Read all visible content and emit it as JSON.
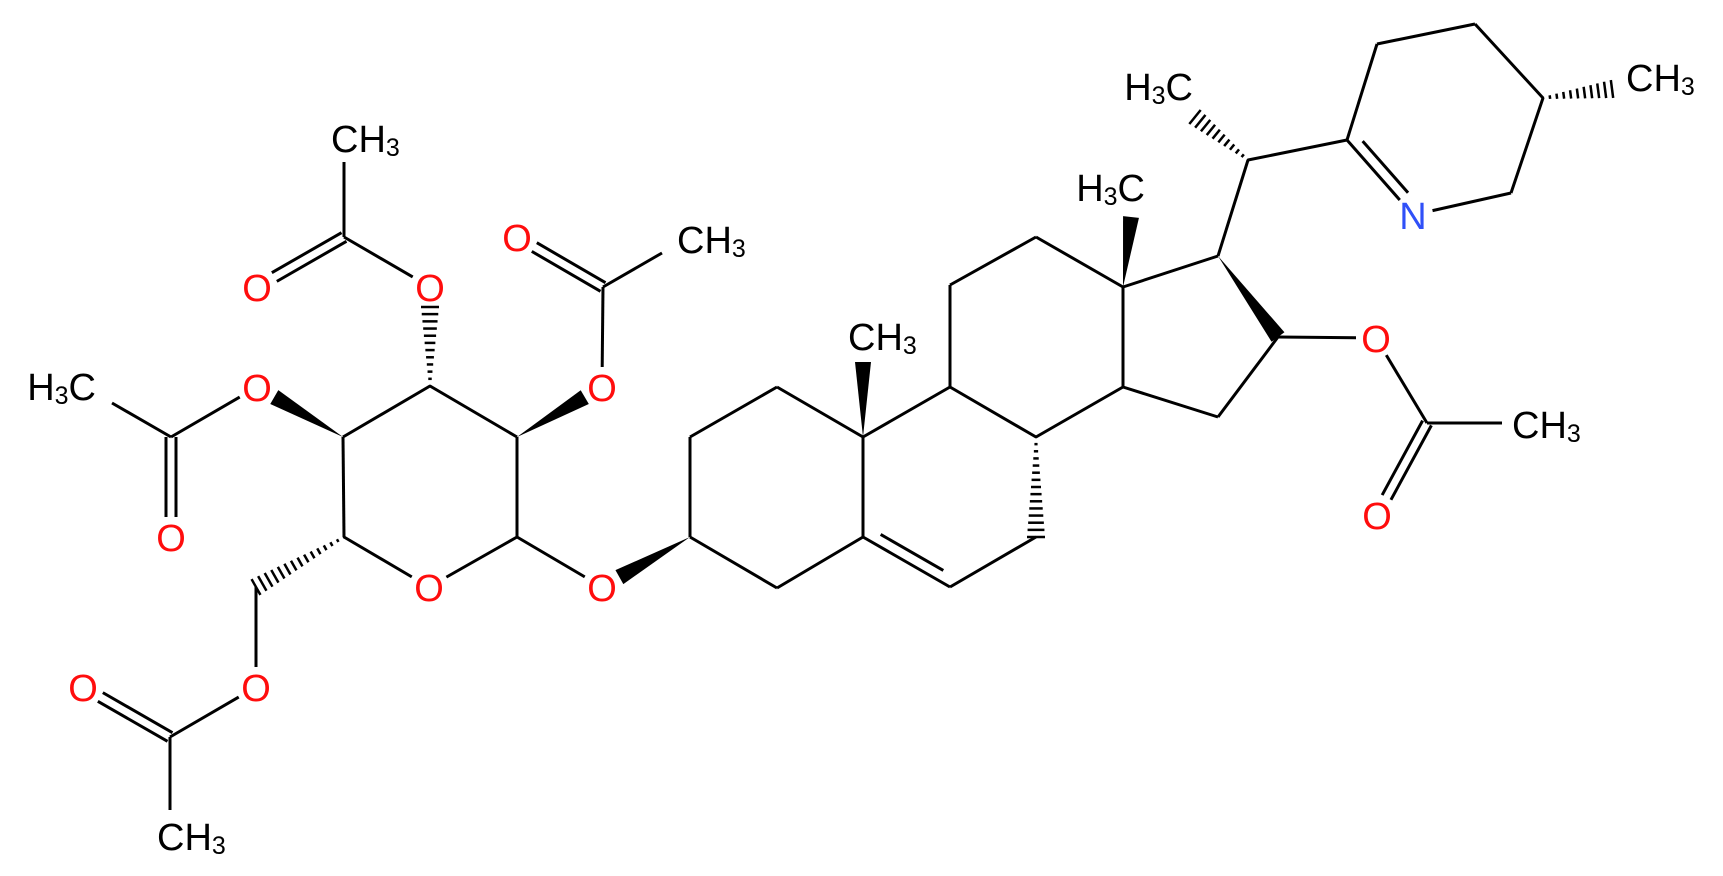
{
  "molecule": {
    "labels": {
      "oxygen": "O",
      "nitrogen": "N",
      "methyl": "CH3",
      "methyl_left": "H3C"
    },
    "colors": {
      "carbon": "#000000",
      "oxygen": "#ff0d0d",
      "nitrogen": "#3050f8",
      "background": "#ffffff"
    }
  }
}
